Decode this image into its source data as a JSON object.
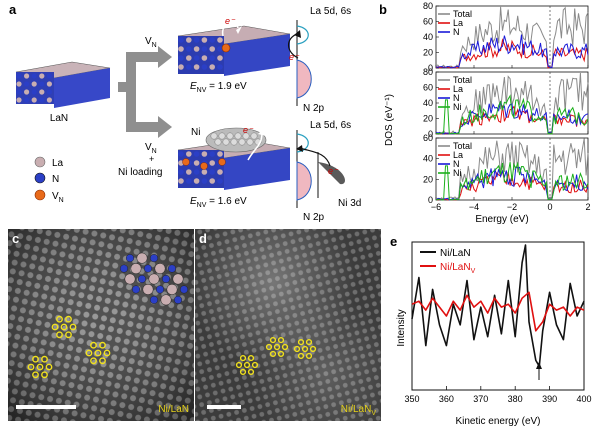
{
  "panel_a": {
    "letter": "a",
    "slab_label": "LaN",
    "arrow_top": "V",
    "arrow_top_sub": "N",
    "arrow_bottom_line1": "V",
    "arrow_bottom_line1_sub": "N",
    "arrow_bottom_plus": "+",
    "arrow_bottom_line3": "Ni loading",
    "top_energy_prefix": "E",
    "top_energy_sub": "NV",
    "top_energy_value": " = 1.9 eV",
    "bottom_energy_prefix": "E",
    "bottom_energy_sub": "NV",
    "bottom_energy_value": " = 1.6 eV",
    "ni_label": "Ni",
    "electron": "e⁻",
    "top_band_upper": "La 5d, 6s",
    "top_band_lower": "N 2p",
    "bottom_band_upper": "La 5d, 6s",
    "bottom_band_lower": "N 2p",
    "bottom_band_ni": "Ni 3d",
    "legend": [
      {
        "label": "La",
        "color": "#c9aeb1"
      },
      {
        "label": "N",
        "color": "#2b3fc6"
      },
      {
        "label": "V",
        "sub": "N",
        "color": "#e86a1a"
      }
    ]
  },
  "panel_b": {
    "letter": "b",
    "ylabel": "DOS (eV⁻¹)",
    "xlabel": "Energy (eV)",
    "xticks": [
      "−6",
      "−4",
      "−2",
      "0",
      "2"
    ],
    "yticks_top": [
      "80",
      "60",
      "40",
      "20",
      "0"
    ],
    "yticks_mid": [
      "80",
      "60",
      "40",
      "20",
      "0"
    ],
    "yticks_bot": [
      "60",
      "40",
      "20",
      "0"
    ],
    "legend_top": [
      {
        "label": "Total",
        "color": "#8a8a8a"
      },
      {
        "label": "La",
        "color": "#e01010"
      },
      {
        "label": "N",
        "color": "#1a1ad8"
      }
    ],
    "legend_mid": [
      {
        "label": "Total",
        "color": "#8a8a8a"
      },
      {
        "label": "La",
        "color": "#e01010"
      },
      {
        "label": "N",
        "color": "#1a1ad8"
      },
      {
        "label": "Ni",
        "color": "#1bb01b"
      }
    ],
    "legend_bot": [
      {
        "label": "Total",
        "color": "#8a8a8a"
      },
      {
        "label": "La",
        "color": "#e01010"
      },
      {
        "label": "N",
        "color": "#1a1ad8"
      },
      {
        "label": "Ni",
        "color": "#1bb01b"
      }
    ]
  },
  "panel_c": {
    "letter": "c",
    "caption": "Ni/LaN"
  },
  "panel_d": {
    "letter": "d",
    "caption_main": "Ni/LaN",
    "caption_sub": "V"
  },
  "panel_e": {
    "letter": "e",
    "ylabel": "Intensity",
    "xlabel": "Kinetic energy (eV)",
    "xticks": [
      "350",
      "360",
      "370",
      "380",
      "390",
      "400"
    ],
    "legend": [
      {
        "label": "Ni/LaN",
        "sub": "",
        "color": "#111111"
      },
      {
        "label": "Ni/LaN",
        "sub": "V",
        "color": "#e01010"
      }
    ]
  },
  "chart_data": {
    "type": "line",
    "xlabel": "Kinetic energy (eV)",
    "ylabel": "Intensity",
    "xlim": [
      350,
      400
    ],
    "series": [
      {
        "name": "Ni/LaN",
        "color": "#111111",
        "x": [
          350,
          352,
          354,
          356,
          358,
          360,
          362,
          364,
          366,
          368,
          370,
          372,
          374,
          376,
          378,
          380,
          382,
          383,
          384,
          386,
          387,
          388,
          390,
          392,
          394,
          396,
          398,
          400
        ],
        "y": [
          0.48,
          0.76,
          0.3,
          0.68,
          0.44,
          0.3,
          0.58,
          0.44,
          0.74,
          0.34,
          0.56,
          0.36,
          0.64,
          0.38,
          0.74,
          0.36,
          0.86,
          0.98,
          0.46,
          0.2,
          0.16,
          0.4,
          0.66,
          0.44,
          0.34,
          0.72,
          0.5,
          0.6
        ]
      },
      {
        "name": "Ni/LaNV",
        "color": "#e01010",
        "x": [
          350,
          352,
          354,
          356,
          358,
          360,
          362,
          364,
          366,
          368,
          370,
          372,
          374,
          376,
          378,
          380,
          382,
          384,
          386,
          388,
          390,
          392,
          394,
          396,
          398,
          400
        ],
        "y": [
          0.58,
          0.6,
          0.54,
          0.62,
          0.56,
          0.5,
          0.6,
          0.54,
          0.64,
          0.56,
          0.6,
          0.52,
          0.62,
          0.56,
          0.58,
          0.52,
          0.62,
          0.66,
          0.4,
          0.46,
          0.58,
          0.54,
          0.56,
          0.5,
          0.56,
          0.54
        ]
      }
    ]
  }
}
